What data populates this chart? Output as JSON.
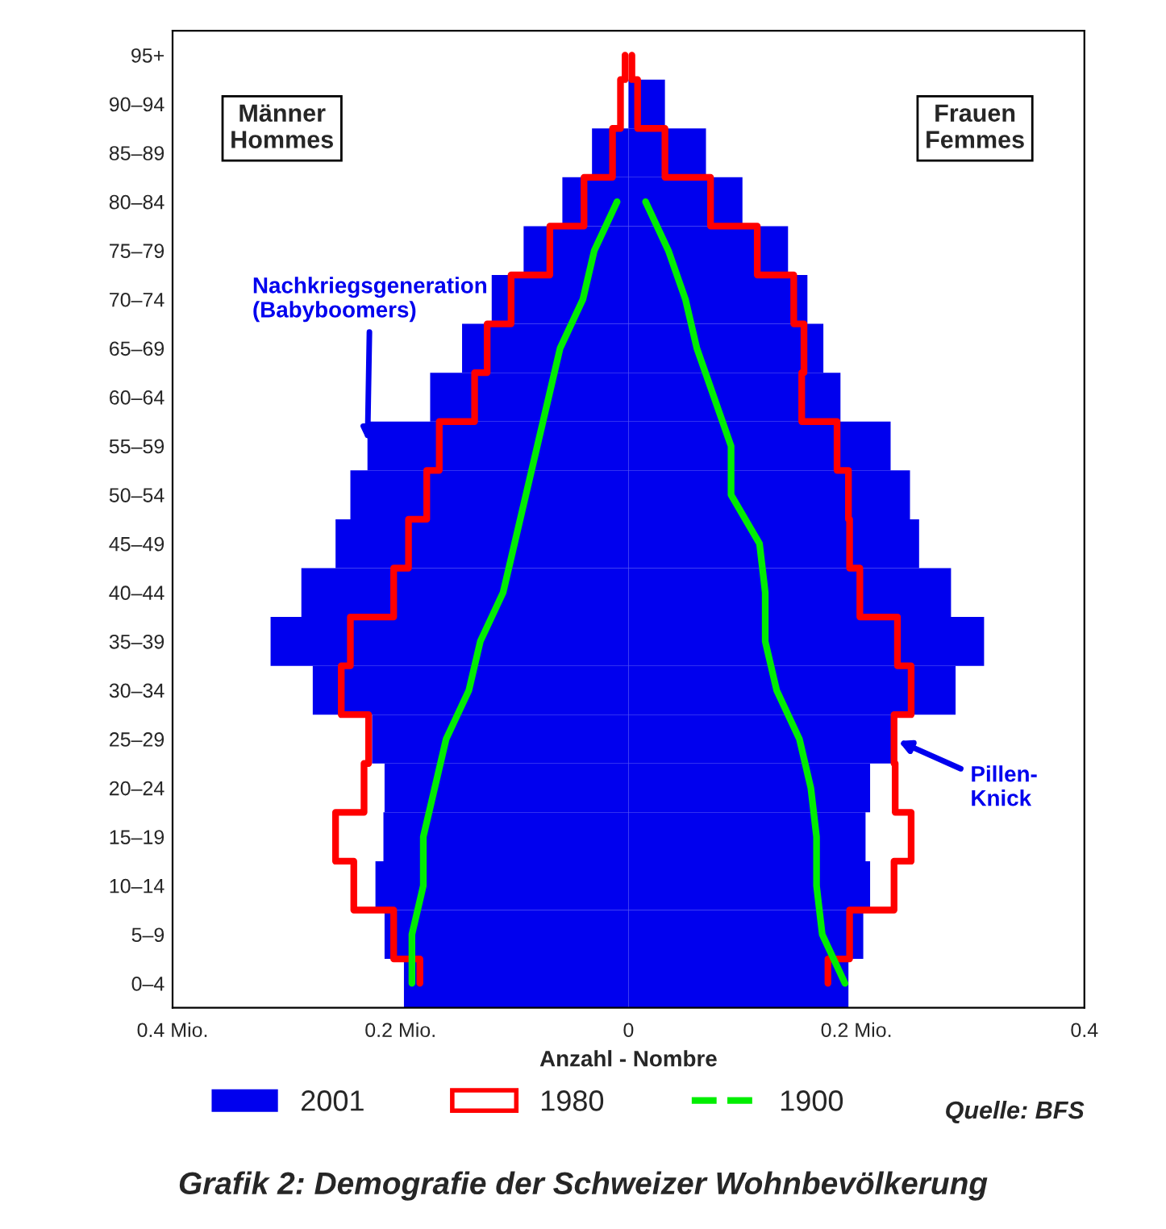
{
  "chart_data": {
    "type": "bar",
    "orientation": "horizontal",
    "title": "Grafik 2: Demografie der Schweizer Wohnbevölkerung",
    "xlabel": "Anzahl - Nombre",
    "categories": [
      "95+",
      "90–94",
      "85–89",
      "80–84",
      "75–79",
      "70–74",
      "65–69",
      "60–64",
      "55–59",
      "50–54",
      "45–49",
      "40–44",
      "35–39",
      "30–34",
      "25–29",
      "20–24",
      "15–19",
      "10–14",
      "5–9",
      "0–4"
    ],
    "series": [
      {
        "name": "2001",
        "type": "bar",
        "color": "#0000ee",
        "values": [
          null,
          null,
          -0.032,
          -0.058,
          -0.092,
          -0.12,
          -0.146,
          -0.174,
          -0.229,
          -0.244,
          -0.257,
          -0.287,
          -0.314,
          -0.277,
          -0.225,
          -0.214,
          -0.215,
          -0.222,
          -0.214,
          -0.197
        ]
      },
      {
        "type": "bar",
        "color": "#0000ee",
        "values": [
          null,
          0.032,
          0.068,
          0.1,
          0.14,
          0.157,
          0.171,
          0.186,
          0.23,
          0.247,
          0.255,
          0.283,
          0.312,
          0.287,
          0.233,
          0.212,
          0.208,
          0.212,
          0.206,
          0.193
        ]
      },
      {
        "name": "1980",
        "type": "step",
        "color": "#ff0000",
        "values": [
          -0.003,
          -0.007,
          -0.014,
          -0.039,
          -0.069,
          -0.103,
          -0.124,
          -0.135,
          -0.166,
          -0.177,
          -0.193,
          -0.206,
          -0.244,
          -0.252,
          -0.228,
          -0.232,
          -0.257,
          -0.241,
          -0.206,
          -0.183
        ]
      },
      {
        "type": "step",
        "color": "#ff0000",
        "values": [
          0.003,
          0.008,
          0.032,
          0.072,
          0.113,
          0.145,
          0.154,
          0.152,
          0.183,
          0.193,
          0.194,
          0.203,
          0.236,
          0.248,
          0.233,
          0.234,
          0.248,
          0.233,
          0.194,
          0.175
        ]
      },
      {
        "name": "1900",
        "type": "line",
        "color": "#00ee00",
        "values": [
          null,
          null,
          null,
          -0.01,
          -0.03,
          -0.04,
          -0.06,
          -0.07,
          -0.08,
          -0.09,
          -0.1,
          -0.11,
          -0.13,
          -0.14,
          -0.16,
          -0.17,
          -0.18,
          -0.18,
          -0.19,
          -0.19
        ]
      },
      {
        "type": "line",
        "color": "#00ee00",
        "values": [
          null,
          null,
          null,
          0.015,
          0.035,
          0.05,
          0.06,
          0.075,
          0.09,
          0.09,
          0.115,
          0.12,
          0.12,
          0.13,
          0.15,
          0.16,
          0.165,
          0.165,
          0.17,
          0.19
        ]
      }
    ],
    "xlim": [
      -0.4,
      0.4
    ],
    "xticks": [
      {
        "value": -0.4,
        "label": "0.4 Mio."
      },
      {
        "value": -0.2,
        "label": "0.2 Mio."
      },
      0,
      {
        "value": 0.2,
        "label": "0.2 Mio."
      },
      0.4
    ],
    "annotations": [
      {
        "text": "Männer\nHommes"
      },
      {
        "text": "Frauen\nFemmes"
      },
      {
        "text": "Nachkriegsgeneration\n(Babyboomers)",
        "x": -0.229,
        "y": "55–59"
      },
      {
        "text": "Pillen-\nKnick",
        "x": 0.233,
        "y": "25–29"
      },
      "Quelle: BFS"
    ],
    "legend": "bottom",
    "stacked": true,
    "grid": false,
    "line_style": "solid",
    "marker": "none"
  }
}
